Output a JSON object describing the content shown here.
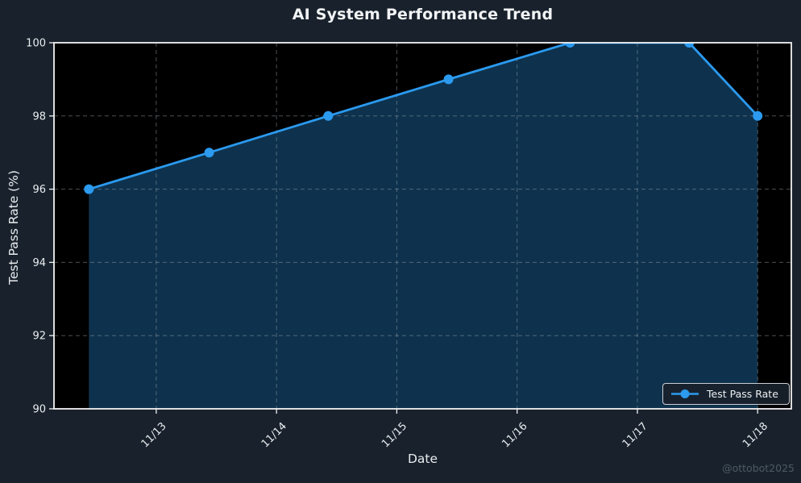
{
  "figure": {
    "title": "AI System Performance Trend",
    "watermark": "@ottobot2025"
  },
  "chart_data": {
    "type": "line",
    "area_fill": true,
    "title": "AI System Performance Trend",
    "xlabel": "Date",
    "ylabel": "Test Pass Rate (%)",
    "ylim": [
      90,
      100
    ],
    "yticks": [
      90,
      92,
      94,
      96,
      98,
      100
    ],
    "xticks": [
      {
        "label": "11/13",
        "day": 13
      },
      {
        "label": "11/14",
        "day": 14
      },
      {
        "label": "11/15",
        "day": 15
      },
      {
        "label": "11/16",
        "day": 16
      },
      {
        "label": "11/17",
        "day": 17
      },
      {
        "label": "11/18",
        "day": 18
      }
    ],
    "x_range_days": [
      12.15,
      18.28
    ],
    "grid": true,
    "grid_style": "dashed",
    "legend": {
      "label": "Test Pass Rate",
      "position": "lower-right"
    },
    "series": [
      {
        "name": "Test Pass Rate",
        "points": [
          {
            "date": "11/12",
            "x_day": 12.44,
            "value": 96
          },
          {
            "date": "11/13",
            "x_day": 13.44,
            "value": 97
          },
          {
            "date": "11/14",
            "x_day": 14.43,
            "value": 98
          },
          {
            "date": "11/15",
            "x_day": 15.43,
            "value": 99
          },
          {
            "date": "11/16",
            "x_day": 16.44,
            "value": 100
          },
          {
            "date": "11/17",
            "x_day": 17.43,
            "value": 100
          },
          {
            "date": "11/18",
            "x_day": 18.0,
            "value": 98
          }
        ]
      }
    ],
    "colors": {
      "figure_bg": "#19222c",
      "plot_bg": "#000000",
      "line": "#2b9aef",
      "fill": "rgba(43,154,239,0.32)",
      "grid": "rgba(148,158,168,0.5)",
      "spine": "#f2f2f2",
      "text": "#e9edf0",
      "watermark": "#4e5963"
    }
  }
}
